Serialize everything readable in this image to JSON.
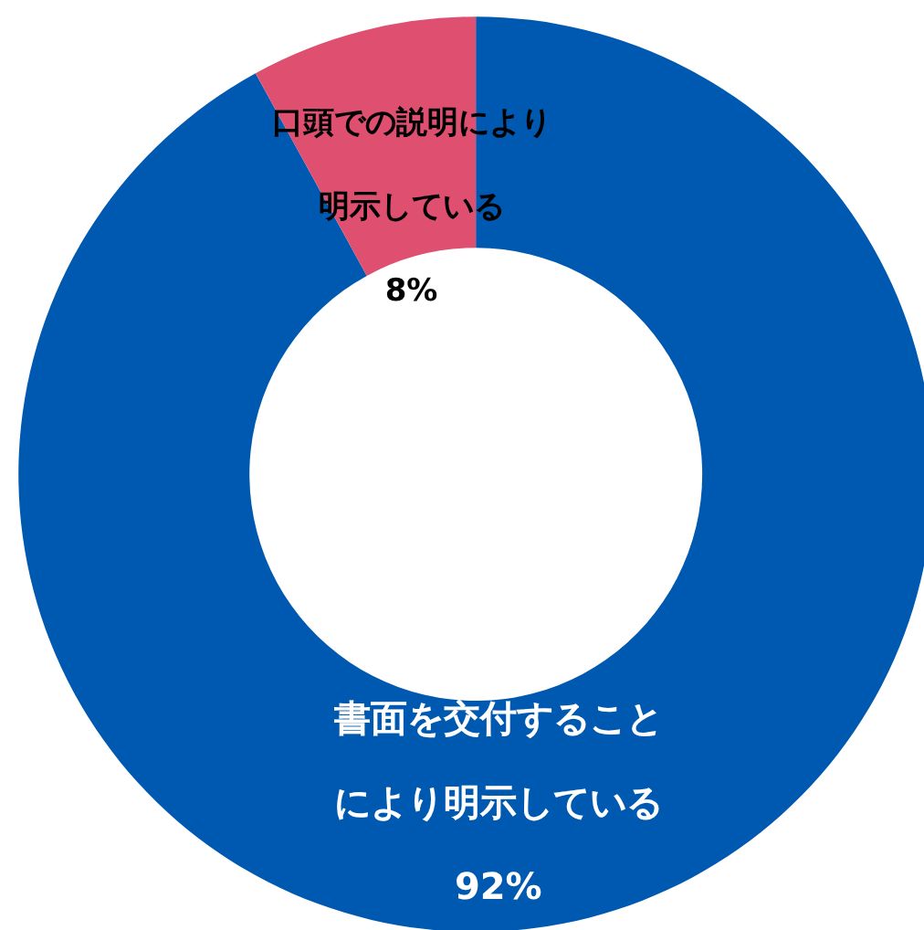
{
  "chart_data": {
    "type": "donut",
    "categories": [
      "書面を交付することにより明示している",
      "口頭での説明により明示している"
    ],
    "values": [
      92,
      8
    ],
    "colors": [
      "#0059b0",
      "#df5070"
    ],
    "value_labels": [
      "92%",
      "8%"
    ],
    "legend": false
  }
}
